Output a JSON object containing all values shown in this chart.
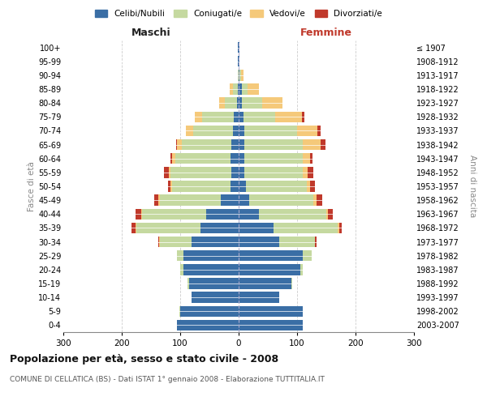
{
  "age_groups": [
    "0-4",
    "5-9",
    "10-14",
    "15-19",
    "20-24",
    "25-29",
    "30-34",
    "35-39",
    "40-44",
    "45-49",
    "50-54",
    "55-59",
    "60-64",
    "65-69",
    "70-74",
    "75-79",
    "80-84",
    "85-89",
    "90-94",
    "95-99",
    "100+"
  ],
  "birth_years": [
    "2003-2007",
    "1998-2002",
    "1993-1997",
    "1988-1992",
    "1983-1987",
    "1978-1982",
    "1973-1977",
    "1968-1972",
    "1963-1967",
    "1958-1962",
    "1953-1957",
    "1948-1952",
    "1943-1947",
    "1938-1942",
    "1933-1937",
    "1928-1932",
    "1923-1927",
    "1918-1922",
    "1913-1917",
    "1908-1912",
    "≤ 1907"
  ],
  "males": {
    "celibi": [
      105,
      100,
      80,
      85,
      95,
      95,
      80,
      65,
      55,
      30,
      14,
      12,
      14,
      12,
      10,
      8,
      3,
      2,
      0,
      1,
      1
    ],
    "coniugati": [
      0,
      1,
      1,
      2,
      5,
      10,
      55,
      110,
      110,
      105,
      100,
      105,
      95,
      85,
      68,
      55,
      20,
      8,
      2,
      0,
      0
    ],
    "vedovi": [
      0,
      0,
      0,
      0,
      0,
      0,
      1,
      1,
      2,
      2,
      2,
      3,
      5,
      8,
      12,
      12,
      10,
      5,
      0,
      0,
      0
    ],
    "divorziati": [
      0,
      0,
      0,
      0,
      0,
      0,
      2,
      8,
      10,
      8,
      5,
      8,
      2,
      2,
      0,
      0,
      0,
      0,
      0,
      0,
      0
    ]
  },
  "females": {
    "nubili": [
      110,
      110,
      70,
      90,
      105,
      110,
      70,
      60,
      35,
      18,
      12,
      10,
      10,
      10,
      10,
      8,
      5,
      5,
      2,
      1,
      1
    ],
    "coniugate": [
      0,
      0,
      0,
      2,
      5,
      15,
      60,
      110,
      115,
      110,
      105,
      100,
      100,
      100,
      90,
      55,
      35,
      10,
      2,
      0,
      0
    ],
    "vedove": [
      0,
      0,
      0,
      0,
      0,
      0,
      1,
      2,
      3,
      5,
      5,
      8,
      12,
      30,
      35,
      45,
      35,
      20,
      5,
      1,
      0
    ],
    "divorziate": [
      0,
      0,
      0,
      0,
      0,
      0,
      2,
      5,
      8,
      10,
      8,
      10,
      5,
      8,
      5,
      5,
      0,
      0,
      0,
      0,
      0
    ]
  },
  "colors": {
    "celibi": "#3a6ea5",
    "coniugati": "#c5d9a0",
    "vedovi": "#f5c97a",
    "divorziati": "#c0392b"
  },
  "xlim": 300,
  "title": "Popolazione per età, sesso e stato civile - 2008",
  "subtitle": "COMUNE DI CELLATICA (BS) - Dati ISTAT 1° gennaio 2008 - Elaborazione TUTTITALIA.IT",
  "ylabel_left": "Fasce di età",
  "ylabel_right": "Anni di nascita",
  "xlabel_left": "Maschi",
  "xlabel_right": "Femmine",
  "legend_labels": [
    "Celibi/Nubili",
    "Coniugati/e",
    "Vedovi/e",
    "Divorziati/e"
  ],
  "background_color": "#ffffff",
  "grid_color": "#cccccc"
}
